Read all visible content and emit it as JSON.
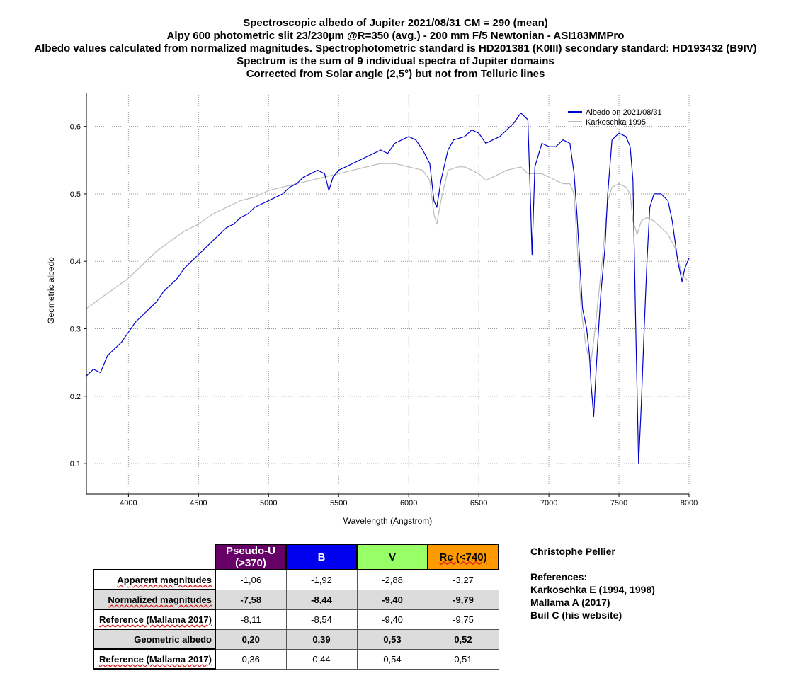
{
  "titles": {
    "line1": "Spectroscopic albedo of Jupiter 2021/08/31 CM = 290 (mean)",
    "line2": "Alpy 600 photometric slit 23/230µm @R=350 (avg.) - 200 mm F/5 Newtonian - ASI183MMPro",
    "line3": "Albedo values calculated from normalized magnitudes. Spectrophotometric standard is HD201381 (K0III) secondary standard: HD193432 (B9IV)",
    "line4": "Spectrum is the sum of 9 individual spectra of Jupiter domains",
    "line5": "Corrected from Solar angle (2,5°) but not from Telluric lines"
  },
  "chart_data": {
    "type": "line",
    "xlabel": "Wavelength (Angstrom)",
    "ylabel": "Geometric albedo",
    "xlim": [
      3700,
      8000
    ],
    "ylim": [
      0.055,
      0.65
    ],
    "xticks": [
      4000,
      4500,
      5000,
      5500,
      6000,
      6500,
      7000,
      7500,
      8000
    ],
    "yticks": [
      0.1,
      0.2,
      0.3,
      0.4,
      0.5,
      0.6
    ],
    "grid": true,
    "legend_position": "top-right",
    "series": [
      {
        "name": "Albedo on 2021/08/31",
        "color": "#0000cc",
        "points": [
          [
            3700,
            0.23
          ],
          [
            3750,
            0.24
          ],
          [
            3800,
            0.235
          ],
          [
            3850,
            0.26
          ],
          [
            3900,
            0.27
          ],
          [
            3950,
            0.28
          ],
          [
            4000,
            0.295
          ],
          [
            4050,
            0.31
          ],
          [
            4100,
            0.32
          ],
          [
            4150,
            0.33
          ],
          [
            4200,
            0.34
          ],
          [
            4250,
            0.355
          ],
          [
            4300,
            0.365
          ],
          [
            4350,
            0.375
          ],
          [
            4400,
            0.39
          ],
          [
            4450,
            0.4
          ],
          [
            4500,
            0.41
          ],
          [
            4550,
            0.42
          ],
          [
            4600,
            0.43
          ],
          [
            4650,
            0.44
          ],
          [
            4700,
            0.45
          ],
          [
            4750,
            0.455
          ],
          [
            4800,
            0.465
          ],
          [
            4850,
            0.47
          ],
          [
            4900,
            0.48
          ],
          [
            4950,
            0.485
          ],
          [
            5000,
            0.49
          ],
          [
            5050,
            0.495
          ],
          [
            5100,
            0.5
          ],
          [
            5150,
            0.51
          ],
          [
            5200,
            0.515
          ],
          [
            5250,
            0.525
          ],
          [
            5300,
            0.53
          ],
          [
            5350,
            0.535
          ],
          [
            5400,
            0.53
          ],
          [
            5430,
            0.505
          ],
          [
            5460,
            0.525
          ],
          [
            5500,
            0.535
          ],
          [
            5550,
            0.54
          ],
          [
            5600,
            0.545
          ],
          [
            5650,
            0.55
          ],
          [
            5700,
            0.555
          ],
          [
            5750,
            0.56
          ],
          [
            5800,
            0.565
          ],
          [
            5850,
            0.56
          ],
          [
            5900,
            0.575
          ],
          [
            5950,
            0.58
          ],
          [
            6000,
            0.585
          ],
          [
            6050,
            0.58
          ],
          [
            6100,
            0.565
          ],
          [
            6150,
            0.545
          ],
          [
            6180,
            0.49
          ],
          [
            6200,
            0.48
          ],
          [
            6230,
            0.52
          ],
          [
            6280,
            0.565
          ],
          [
            6320,
            0.58
          ],
          [
            6400,
            0.585
          ],
          [
            6450,
            0.595
          ],
          [
            6500,
            0.59
          ],
          [
            6550,
            0.575
          ],
          [
            6600,
            0.58
          ],
          [
            6650,
            0.585
          ],
          [
            6700,
            0.595
          ],
          [
            6750,
            0.605
          ],
          [
            6800,
            0.62
          ],
          [
            6850,
            0.61
          ],
          [
            6870,
            0.48
          ],
          [
            6880,
            0.41
          ],
          [
            6900,
            0.54
          ],
          [
            6950,
            0.575
          ],
          [
            7000,
            0.57
          ],
          [
            7050,
            0.57
          ],
          [
            7100,
            0.58
          ],
          [
            7150,
            0.575
          ],
          [
            7180,
            0.53
          ],
          [
            7200,
            0.47
          ],
          [
            7220,
            0.4
          ],
          [
            7240,
            0.33
          ],
          [
            7270,
            0.3
          ],
          [
            7290,
            0.26
          ],
          [
            7300,
            0.22
          ],
          [
            7320,
            0.17
          ],
          [
            7340,
            0.25
          ],
          [
            7370,
            0.35
          ],
          [
            7400,
            0.42
          ],
          [
            7420,
            0.5
          ],
          [
            7450,
            0.58
          ],
          [
            7500,
            0.59
          ],
          [
            7550,
            0.585
          ],
          [
            7580,
            0.57
          ],
          [
            7600,
            0.52
          ],
          [
            7620,
            0.3
          ],
          [
            7640,
            0.1
          ],
          [
            7660,
            0.19
          ],
          [
            7680,
            0.3
          ],
          [
            7700,
            0.4
          ],
          [
            7720,
            0.48
          ],
          [
            7750,
            0.5
          ],
          [
            7800,
            0.5
          ],
          [
            7850,
            0.49
          ],
          [
            7880,
            0.46
          ],
          [
            7900,
            0.43
          ],
          [
            7920,
            0.4
          ],
          [
            7950,
            0.37
          ],
          [
            7970,
            0.39
          ],
          [
            8000,
            0.405
          ]
        ]
      },
      {
        "name": "Karkoschka 1995",
        "color": "#bbbbbb",
        "points": [
          [
            3700,
            0.33
          ],
          [
            3800,
            0.345
          ],
          [
            3900,
            0.36
          ],
          [
            4000,
            0.375
          ],
          [
            4100,
            0.395
          ],
          [
            4200,
            0.415
          ],
          [
            4300,
            0.43
          ],
          [
            4400,
            0.445
          ],
          [
            4500,
            0.455
          ],
          [
            4600,
            0.47
          ],
          [
            4700,
            0.48
          ],
          [
            4800,
            0.49
          ],
          [
            4900,
            0.495
          ],
          [
            5000,
            0.505
          ],
          [
            5100,
            0.51
          ],
          [
            5200,
            0.515
          ],
          [
            5300,
            0.52
          ],
          [
            5400,
            0.525
          ],
          [
            5500,
            0.53
          ],
          [
            5600,
            0.535
          ],
          [
            5700,
            0.54
          ],
          [
            5800,
            0.545
          ],
          [
            5900,
            0.545
          ],
          [
            6000,
            0.54
          ],
          [
            6100,
            0.535
          ],
          [
            6150,
            0.52
          ],
          [
            6180,
            0.47
          ],
          [
            6200,
            0.455
          ],
          [
            6230,
            0.49
          ],
          [
            6280,
            0.535
          ],
          [
            6350,
            0.54
          ],
          [
            6400,
            0.54
          ],
          [
            6450,
            0.535
          ],
          [
            6500,
            0.53
          ],
          [
            6550,
            0.52
          ],
          [
            6600,
            0.525
          ],
          [
            6650,
            0.53
          ],
          [
            6700,
            0.535
          ],
          [
            6800,
            0.54
          ],
          [
            6850,
            0.53
          ],
          [
            6900,
            0.53
          ],
          [
            6950,
            0.53
          ],
          [
            7000,
            0.525
          ],
          [
            7050,
            0.52
          ],
          [
            7100,
            0.515
          ],
          [
            7150,
            0.515
          ],
          [
            7180,
            0.5
          ],
          [
            7200,
            0.43
          ],
          [
            7230,
            0.33
          ],
          [
            7260,
            0.28
          ],
          [
            7280,
            0.26
          ],
          [
            7300,
            0.25
          ],
          [
            7330,
            0.3
          ],
          [
            7380,
            0.4
          ],
          [
            7420,
            0.49
          ],
          [
            7450,
            0.51
          ],
          [
            7500,
            0.515
          ],
          [
            7550,
            0.51
          ],
          [
            7580,
            0.5
          ],
          [
            7600,
            0.46
          ],
          [
            7630,
            0.44
          ],
          [
            7660,
            0.46
          ],
          [
            7700,
            0.465
          ],
          [
            7750,
            0.46
          ],
          [
            7800,
            0.45
          ],
          [
            7850,
            0.44
          ],
          [
            7900,
            0.42
          ],
          [
            7950,
            0.38
          ],
          [
            8000,
            0.37
          ]
        ]
      }
    ]
  },
  "table": {
    "headers": [
      {
        "line1": "Pseudo-U",
        "line2": "(>370)",
        "bg": "#660066",
        "fg": "#ffffff"
      },
      {
        "line1": "B",
        "line2": "",
        "bg": "#0000ee",
        "fg": "#ffffff"
      },
      {
        "line1": "V",
        "line2": "",
        "bg": "#99ff66",
        "fg": "#000000"
      },
      {
        "line1": "Rc (<740)",
        "line2": "",
        "bg": "#ff9900",
        "fg": "#000000"
      }
    ],
    "rows": [
      {
        "label": "Apparent magnitudes",
        "values": [
          "-1,06",
          "-1,92",
          "-2,88",
          "-3,27"
        ],
        "shaded": false
      },
      {
        "label": "Normalized magnitudes",
        "values": [
          "-7,58",
          "-8,44",
          "-9,40",
          "-9,79"
        ],
        "shaded": true
      },
      {
        "label": "Reference (Mallama 2017)",
        "values": [
          "-8,11",
          "-8,54",
          "-9,40",
          "-9,75"
        ],
        "shaded": false
      },
      {
        "label": "Geometric albedo",
        "values": [
          "0,20",
          "0,39",
          "0,53",
          "0,52"
        ],
        "shaded": true
      },
      {
        "label": "Reference (Mallama 2017)",
        "values": [
          "0,36",
          "0,44",
          "0,54",
          "0,51"
        ],
        "shaded": false
      }
    ]
  },
  "side": {
    "author": "Christophe Pellier",
    "references_title": "References:",
    "references": [
      "Karkoschka E (1994, 1998)",
      "Mallama A (2017)",
      "Buil C (his website)"
    ]
  }
}
